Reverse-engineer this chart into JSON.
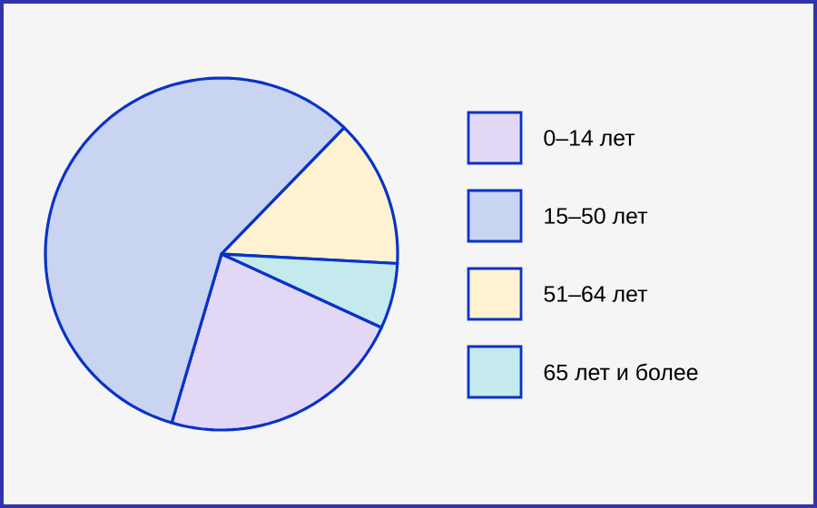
{
  "chart_data": {
    "type": "pie",
    "categories": [
      "0–14 лет",
      "15–50 лет",
      "51–64 лет",
      "65 лет и более"
    ],
    "values": [
      22.7,
      57.7,
      13.6,
      6.0
    ],
    "colors": [
      "#e2d8f6",
      "#c8d4f0",
      "#fff2d0",
      "#c4eaee"
    ],
    "legend": "right"
  }
}
